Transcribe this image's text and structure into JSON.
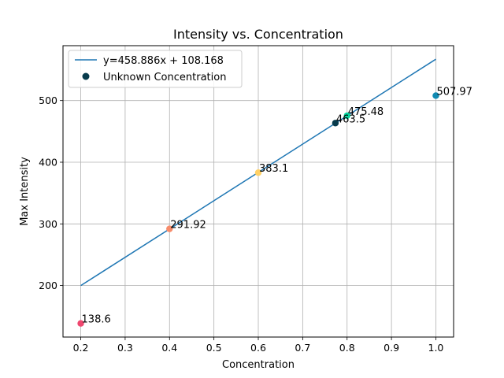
{
  "chart_data": {
    "type": "scatter",
    "title": "Intensity vs. Concentration",
    "xlabel": "Concentration",
    "ylabel": "Max Intensity",
    "xlim": [
      0.16,
      1.04
    ],
    "ylim": [
      116.5,
      589.0
    ],
    "grid": true,
    "legend_position": "upper-left",
    "x_ticks": [
      0.2,
      0.3,
      0.4,
      0.5,
      0.6,
      0.7,
      0.8,
      0.9,
      1.0
    ],
    "x_tick_labels": [
      "0.2",
      "0.3",
      "0.4",
      "0.5",
      "0.6",
      "0.7",
      "0.8",
      "0.9",
      "1.0"
    ],
    "y_ticks": [
      200,
      300,
      400,
      500
    ],
    "y_tick_labels": [
      "200",
      "300",
      "400",
      "500"
    ],
    "fit_line": {
      "name": "y=458.886x + 108.168",
      "slope": 458.886,
      "intercept": 108.168,
      "x_range": [
        0.2,
        1.0
      ],
      "color": "#1f77b4"
    },
    "points": [
      {
        "x": 0.2,
        "y": 138.6,
        "label": "138.6",
        "color": "#ef476f"
      },
      {
        "x": 0.4,
        "y": 291.92,
        "label": "291.92",
        "color": "#f78c6b"
      },
      {
        "x": 0.6,
        "y": 383.1,
        "label": "383.1",
        "color": "#ffd166"
      },
      {
        "x": 0.8,
        "y": 475.48,
        "label": "475.48",
        "color": "#06d6a0"
      },
      {
        "x": 1.0,
        "y": 507.97,
        "label": "507.97",
        "color": "#118ab2"
      }
    ],
    "unknown": {
      "name": "Unknown Concentration",
      "x": 0.7737,
      "y": 463.5,
      "label": "463.5",
      "color": "#073b4c"
    }
  }
}
